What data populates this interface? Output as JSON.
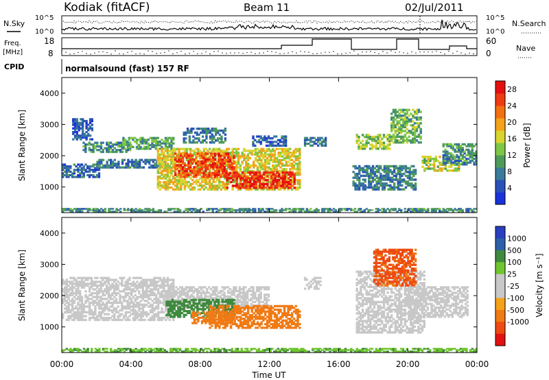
{
  "header": {
    "station": "Kodiak (fitACF)",
    "beam": "Beam 11",
    "date": "02/Jul/2011"
  },
  "top_panels": {
    "nsky_label": "N.Sky",
    "nsearch_label": "N.Search",
    "noise_ticks_left": [
      "10^5",
      "10^0"
    ],
    "noise_ticks_right": [
      "10^5",
      "10^0"
    ],
    "freq_label_1": "Freq.",
    "freq_label_2": "[MHz]",
    "freq_ticks": [
      "18",
      "8"
    ],
    "nave_label": "Nave",
    "nave_ticks": [
      "60",
      "0"
    ],
    "cpid_label": "CPID",
    "cpid_text": "normalsound (fast) 157 RF"
  },
  "colors": {
    "power_scale": [
      "#1a33d9",
      "#2a52b8",
      "#3a7a9a",
      "#4f9a5a",
      "#7ec846",
      "#d9d430",
      "#f4a21c",
      "#f37011",
      "#ee3b12",
      "#e41010"
    ],
    "velocity_scale": [
      "#2a3fc0",
      "#2e5fa8",
      "#3f8a3e",
      "#6fc52f",
      "#c8c8c8",
      "#c8c8c8",
      "#f5a21a",
      "#f07a14",
      "#ee4a12",
      "#e31212"
    ]
  },
  "chart_data": [
    {
      "type": "heatmap",
      "name": "power",
      "xlabel": "Time UT",
      "ylabel": "Slant Range [km]",
      "x_ticks": [
        "00:00",
        "04:00",
        "08:00",
        "12:00",
        "16:00",
        "20:00",
        "00:00"
      ],
      "xlim": [
        0,
        24
      ],
      "ylim": [
        180,
        4500
      ],
      "y_ticks": [
        1000,
        2000,
        3000,
        4000
      ],
      "colorbar_label": "Power [dB]",
      "colorbar_ticks": [
        4,
        8,
        12,
        16,
        20,
        24,
        28
      ],
      "colorbar_range": [
        0,
        30
      ],
      "regions": [
        {
          "t0": 0.0,
          "t1": 24.0,
          "r0": 200,
          "r1": 330,
          "v": 9
        },
        {
          "t0": 0.0,
          "t1": 2.2,
          "r0": 1300,
          "r1": 1750,
          "v": 6
        },
        {
          "t0": 0.6,
          "t1": 1.8,
          "r0": 2500,
          "r1": 3200,
          "v": 5
        },
        {
          "t0": 1.2,
          "t1": 4.0,
          "r0": 2100,
          "r1": 2450,
          "v": 9
        },
        {
          "t0": 2.0,
          "t1": 6.0,
          "r0": 1600,
          "r1": 1900,
          "v": 7
        },
        {
          "t0": 3.5,
          "t1": 6.5,
          "r0": 2200,
          "r1": 2600,
          "v": 11
        },
        {
          "t0": 5.5,
          "t1": 13.8,
          "r0": 900,
          "r1": 2250,
          "v": 17
        },
        {
          "t0": 6.5,
          "t1": 10.0,
          "r0": 1300,
          "r1": 2100,
          "v": 25
        },
        {
          "t0": 9.5,
          "t1": 13.5,
          "r0": 950,
          "r1": 1500,
          "v": 27
        },
        {
          "t0": 7.0,
          "t1": 9.5,
          "r0": 2400,
          "r1": 2900,
          "v": 8
        },
        {
          "t0": 11.0,
          "t1": 13.0,
          "r0": 2300,
          "r1": 2650,
          "v": 6
        },
        {
          "t0": 14.0,
          "t1": 15.3,
          "r0": 2300,
          "r1": 2600,
          "v": 7
        },
        {
          "t0": 16.8,
          "t1": 20.5,
          "r0": 900,
          "r1": 1700,
          "v": 8
        },
        {
          "t0": 17.0,
          "t1": 19.0,
          "r0": 2200,
          "r1": 2700,
          "v": 14
        },
        {
          "t0": 19.0,
          "t1": 20.8,
          "r0": 2400,
          "r1": 3500,
          "v": 12
        },
        {
          "t0": 20.8,
          "t1": 23.0,
          "r0": 1500,
          "r1": 2000,
          "v": 15
        },
        {
          "t0": 22.0,
          "t1": 24.0,
          "r0": 1700,
          "r1": 2400,
          "v": 9
        }
      ]
    },
    {
      "type": "heatmap",
      "name": "velocity",
      "xlabel": "Time UT",
      "ylabel": "Slant Range [km]",
      "x_ticks": [
        "00:00",
        "04:00",
        "08:00",
        "12:00",
        "16:00",
        "20:00",
        "00:00"
      ],
      "xlim": [
        0,
        24
      ],
      "ylim": [
        180,
        4500
      ],
      "y_ticks": [
        1000,
        2000,
        3000,
        4000
      ],
      "colorbar_label": "Velocity [m s⁻¹]",
      "colorbar_ticks": [
        "1000",
        "500",
        "100",
        "25",
        "-25",
        "-100",
        "-500",
        "-1000"
      ],
      "regions": [
        {
          "t0": 0.0,
          "t1": 24.0,
          "r0": 200,
          "r1": 330,
          "v": 50
        },
        {
          "t0": 0.0,
          "t1": 6.5,
          "r0": 1200,
          "r1": 2600,
          "v": 0
        },
        {
          "t0": 6.0,
          "t1": 12.0,
          "r0": 1600,
          "r1": 2300,
          "v": 0
        },
        {
          "t0": 6.0,
          "t1": 10.0,
          "r0": 1300,
          "r1": 1900,
          "v": 120
        },
        {
          "t0": 8.5,
          "t1": 13.8,
          "r0": 950,
          "r1": 1700,
          "v": -200
        },
        {
          "t0": 7.5,
          "t1": 10.0,
          "r0": 1100,
          "r1": 1500,
          "v": -120
        },
        {
          "t0": 14.0,
          "t1": 15.0,
          "r0": 2200,
          "r1": 2600,
          "v": 0
        },
        {
          "t0": 17.0,
          "t1": 21.0,
          "r0": 800,
          "r1": 2800,
          "v": 0
        },
        {
          "t0": 18.0,
          "t1": 20.5,
          "r0": 2300,
          "r1": 3500,
          "v": -400
        },
        {
          "t0": 20.0,
          "t1": 23.5,
          "r0": 1300,
          "r1": 2300,
          "v": 0
        }
      ]
    }
  ]
}
